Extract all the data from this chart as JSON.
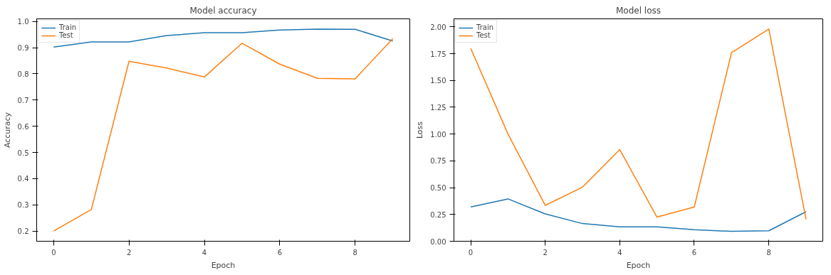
{
  "chart_data": [
    {
      "type": "line",
      "title": "Model accuracy",
      "xlabel": "Epoch",
      "ylabel": "Accuracy",
      "x": [
        0,
        1,
        2,
        3,
        4,
        5,
        6,
        7,
        8,
        9
      ],
      "xlim": [
        -0.45,
        9.45
      ],
      "xticks": [
        0,
        2,
        4,
        6,
        8
      ],
      "ylim": [
        0.161,
        1.01
      ],
      "yticks": [
        {
          "value": 0.2,
          "label": "0.2"
        },
        {
          "value": 0.3,
          "label": "0.3"
        },
        {
          "value": 0.4,
          "label": "0.4"
        },
        {
          "value": 0.5,
          "label": "0.5"
        },
        {
          "value": 0.6,
          "label": "0.6"
        },
        {
          "value": 0.7,
          "label": "0.7"
        },
        {
          "value": 0.8,
          "label": "0.8"
        },
        {
          "value": 0.9,
          "label": "0.9"
        },
        {
          "value": 1.0,
          "label": "1.0"
        }
      ],
      "grid": false,
      "legend": "top left",
      "series": [
        {
          "name": "Train",
          "color": "#1f77b4",
          "values": [
            0.902,
            0.922,
            0.922,
            0.946,
            0.957,
            0.957,
            0.967,
            0.971,
            0.97,
            0.925
          ]
        },
        {
          "name": "Test",
          "color": "#ff7f0e",
          "values": [
            0.2,
            0.282,
            0.848,
            0.822,
            0.788,
            0.917,
            0.837,
            0.783,
            0.781,
            0.935
          ]
        }
      ]
    },
    {
      "type": "line",
      "title": "Model loss",
      "xlabel": "Epoch",
      "ylabel": "Loss",
      "x": [
        0,
        1,
        2,
        3,
        4,
        5,
        6,
        7,
        8,
        9
      ],
      "xlim": [
        -0.45,
        9.45
      ],
      "xticks": [
        0,
        2,
        4,
        6,
        8
      ],
      "ylim": [
        0,
        2.075
      ],
      "yticks": [
        {
          "value": 0,
          "label": "0.00"
        },
        {
          "value": 0.25,
          "label": "0.25"
        },
        {
          "value": 0.5,
          "label": "0.50"
        },
        {
          "value": 0.75,
          "label": "0.75"
        },
        {
          "value": 1.0,
          "label": "1.00"
        },
        {
          "value": 1.25,
          "label": "1.25"
        },
        {
          "value": 1.5,
          "label": "1.50"
        },
        {
          "value": 1.75,
          "label": "1.75"
        },
        {
          "value": 2.0,
          "label": "2.00"
        }
      ],
      "grid": false,
      "legend": "top left",
      "series": [
        {
          "name": "Train",
          "color": "#1f77b4",
          "values": [
            0.32,
            0.395,
            0.255,
            0.165,
            0.135,
            0.135,
            0.108,
            0.092,
            0.098,
            0.275
          ]
        },
        {
          "name": "Test",
          "color": "#ff7f0e",
          "values": [
            1.8,
            1.0,
            0.335,
            0.505,
            0.855,
            0.225,
            0.32,
            1.76,
            1.98,
            0.205
          ]
        }
      ]
    }
  ]
}
